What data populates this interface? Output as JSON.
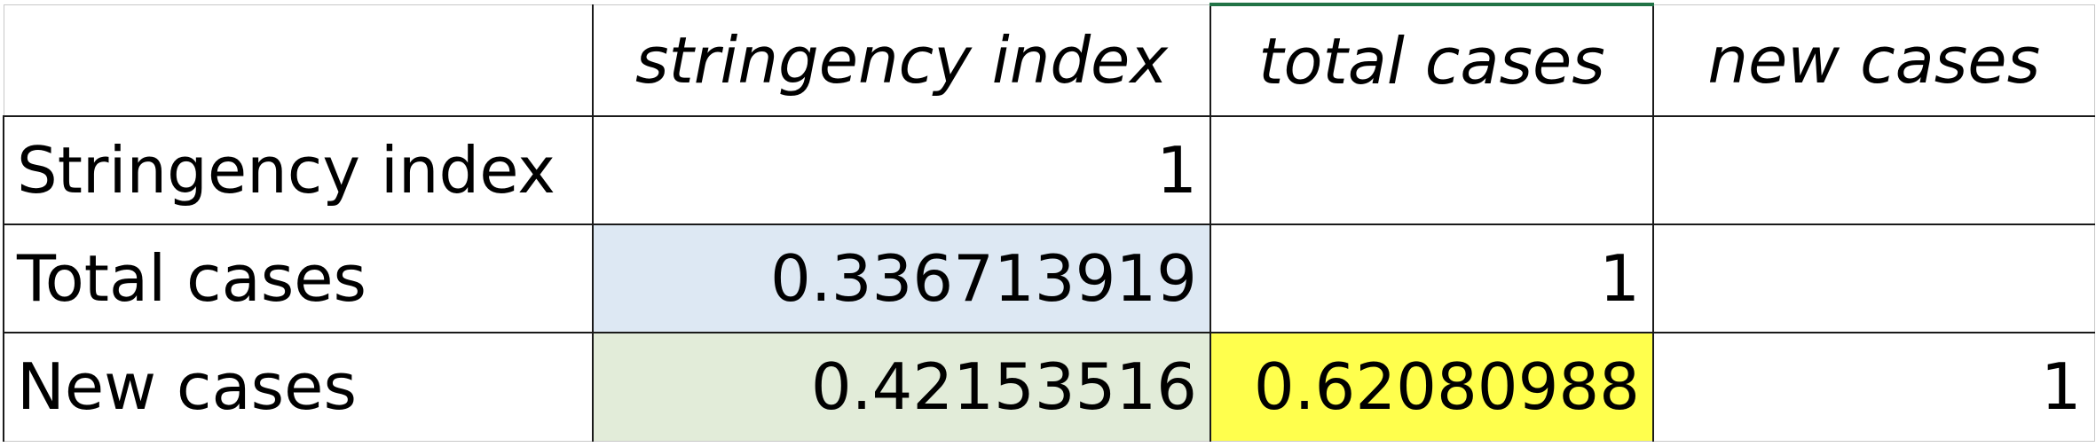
{
  "table": {
    "columns": [
      "",
      "stringency index",
      "total cases",
      "new cases"
    ],
    "rows": [
      {
        "label": "Stringency index",
        "cells": [
          "1",
          "",
          ""
        ]
      },
      {
        "label": "Total cases",
        "cells": [
          "0.336713919",
          "1",
          ""
        ]
      },
      {
        "label": "New cases",
        "cells": [
          "0.42153516",
          "0.62080988",
          "1"
        ]
      }
    ]
  },
  "colors": {
    "highlight_total_vs_stringency": "#dde8f3",
    "highlight_new_vs_stringency": "#e2ecd9",
    "highlight_new_vs_total": "#ffff4d",
    "selected_column_marker": "#217346"
  }
}
